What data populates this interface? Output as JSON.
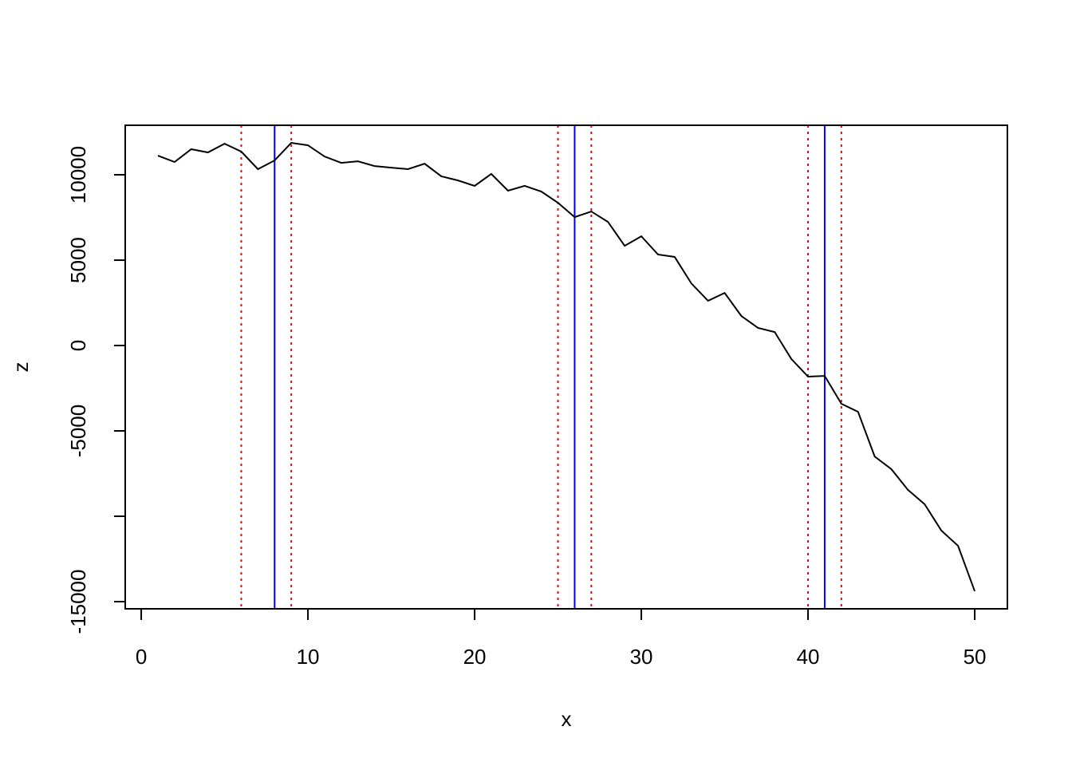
{
  "chart_data": {
    "type": "line",
    "x": [
      1,
      2,
      3,
      4,
      5,
      6,
      7,
      8,
      9,
      10,
      11,
      12,
      13,
      14,
      15,
      16,
      17,
      18,
      19,
      20,
      21,
      22,
      23,
      24,
      25,
      26,
      27,
      28,
      29,
      30,
      31,
      32,
      33,
      34,
      35,
      36,
      37,
      38,
      39,
      40,
      41,
      42,
      43,
      44,
      45,
      46,
      47,
      48,
      49,
      50
    ],
    "series": [
      {
        "color": "#000000",
        "values": [
          11120,
          10750,
          11500,
          11310,
          11820,
          11360,
          10330,
          10840,
          11870,
          11730,
          11070,
          10700,
          10790,
          10510,
          10420,
          10330,
          10650,
          9910,
          9670,
          9350,
          10050,
          9070,
          9350,
          9020,
          8360,
          7520,
          7850,
          7240,
          5840,
          6400,
          5330,
          5190,
          3640,
          2620,
          3080,
          1730,
          1030,
          790,
          -790,
          -1820,
          -1780,
          -3410,
          -3880,
          -6500,
          -7240,
          -8460,
          -9300,
          -10840,
          -11730,
          -14390
        ]
      }
    ],
    "xlabel": "x",
    "ylabel": "z",
    "xlim": [
      -0.96,
      51.96
    ],
    "ylim": [
      -15420,
      12900
    ],
    "xticks": [
      0,
      10,
      20,
      30,
      40,
      50
    ],
    "yticks": [
      -15000,
      {
        "value": -10000,
        "label": null
      },
      -5000,
      0,
      5000,
      10000
    ],
    "vlines": [
      {
        "x": 8,
        "color": "#0000ff",
        "style": "solid"
      },
      {
        "x": 26,
        "color": "#0000ff",
        "style": "solid"
      },
      {
        "x": 41,
        "color": "#0000ff",
        "style": "solid"
      },
      {
        "x": 6,
        "color": "#ff0000",
        "style": "dotted"
      },
      {
        "x": 9,
        "color": "#ff0000",
        "style": "dotted"
      },
      {
        "x": 25,
        "color": "#ff0000",
        "style": "dotted"
      },
      {
        "x": 27,
        "color": "#ff0000",
        "style": "dotted"
      },
      {
        "x": 40,
        "color": "#ff0000",
        "style": "dotted"
      },
      {
        "x": 42,
        "color": "#ff0000",
        "style": "dotted"
      }
    ]
  }
}
